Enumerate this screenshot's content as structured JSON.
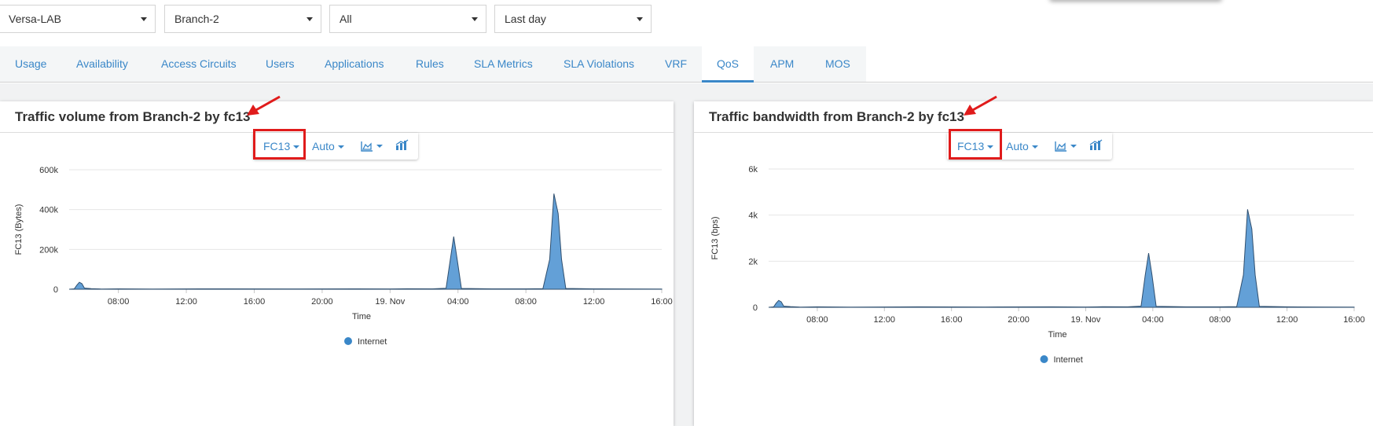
{
  "filters": [
    {
      "value": "Versa-LAB"
    },
    {
      "value": "Branch-2"
    },
    {
      "value": "All"
    },
    {
      "value": "Last day"
    }
  ],
  "tabs": [
    {
      "label": "Usage"
    },
    {
      "label": "Availability"
    },
    {
      "label": "Access Circuits"
    },
    {
      "label": "Users"
    },
    {
      "label": "Applications"
    },
    {
      "label": "Rules"
    },
    {
      "label": "SLA Metrics"
    },
    {
      "label": "SLA Violations"
    },
    {
      "label": "VRF"
    },
    {
      "label": "QoS",
      "active": true
    },
    {
      "label": "APM"
    },
    {
      "label": "MOS"
    }
  ],
  "panels": [
    {
      "title": "Traffic volume from Branch-2 by fc13",
      "toolbar": {
        "class_label": "FC13",
        "interval_label": "Auto",
        "chart_icon": "area-chart-icon",
        "stats_icon": "bar-stats-icon"
      }
    },
    {
      "title": "Traffic bandwidth from Branch-2 by fc13",
      "toolbar": {
        "class_label": "FC13",
        "interval_label": "Auto",
        "chart_icon": "area-chart-icon",
        "stats_icon": "bar-stats-icon"
      }
    }
  ],
  "colors": {
    "accent": "#3a87c8",
    "series": "#5b9bd5",
    "annotation": "#e01b1b"
  },
  "chart_data": [
    {
      "type": "area",
      "xlabel": "Time",
      "ylabel": "FC13 (Bytes)",
      "yticks": [
        "0",
        "200k",
        "400k",
        "600k"
      ],
      "ylim": [
        0,
        600000
      ],
      "xticks": [
        "08:00",
        "12:00",
        "16:00",
        "20:00",
        "19. Nov",
        "04:00",
        "08:00",
        "12:00",
        "16:00"
      ],
      "xlim_hours": [
        5.1,
        40.0
      ],
      "series": [
        {
          "name": "Internet",
          "points": [
            [
              5.1,
              0
            ],
            [
              5.4,
              2000
            ],
            [
              5.55,
              20000
            ],
            [
              5.7,
              35000
            ],
            [
              5.85,
              28000
            ],
            [
              6.0,
              6000
            ],
            [
              6.4,
              3000
            ],
            [
              7.0,
              1000
            ],
            [
              8.0,
              2000
            ],
            [
              10.0,
              1000
            ],
            [
              14.0,
              2000
            ],
            [
              18.0,
              1500
            ],
            [
              22.0,
              2000
            ],
            [
              24.0,
              1500
            ],
            [
              25.0,
              2500
            ],
            [
              26.5,
              2000
            ],
            [
              27.3,
              5000
            ],
            [
              27.55,
              150000
            ],
            [
              27.75,
              265000
            ],
            [
              27.95,
              150000
            ],
            [
              28.2,
              4000
            ],
            [
              30.0,
              2000
            ],
            [
              32.0,
              2000
            ],
            [
              33.0,
              3000
            ],
            [
              33.4,
              150000
            ],
            [
              33.65,
              480000
            ],
            [
              33.9,
              380000
            ],
            [
              34.1,
              150000
            ],
            [
              34.35,
              4000
            ],
            [
              36.0,
              2000
            ],
            [
              38.0,
              1500
            ],
            [
              40.0,
              1000
            ]
          ]
        }
      ],
      "legend": "bottom-center"
    },
    {
      "type": "area",
      "xlabel": "Time",
      "ylabel": "FC13 (bps)",
      "yticks": [
        "0",
        "2k",
        "4k",
        "6k"
      ],
      "ylim": [
        0,
        6000
      ],
      "xticks": [
        "08:00",
        "12:00",
        "16:00",
        "20:00",
        "19. Nov",
        "04:00",
        "08:00",
        "12:00",
        "16:00"
      ],
      "xlim_hours": [
        5.1,
        40.0
      ],
      "series": [
        {
          "name": "Internet",
          "points": [
            [
              5.1,
              0
            ],
            [
              5.4,
              20
            ],
            [
              5.55,
              180
            ],
            [
              5.7,
              300
            ],
            [
              5.85,
              240
            ],
            [
              6.0,
              50
            ],
            [
              6.4,
              30
            ],
            [
              7.0,
              10
            ],
            [
              8.0,
              20
            ],
            [
              10.0,
              10
            ],
            [
              14.0,
              20
            ],
            [
              18.0,
              15
            ],
            [
              22.0,
              20
            ],
            [
              24.0,
              15
            ],
            [
              25.0,
              25
            ],
            [
              26.5,
              20
            ],
            [
              27.3,
              50
            ],
            [
              27.55,
              1400
            ],
            [
              27.75,
              2350
            ],
            [
              27.95,
              1400
            ],
            [
              28.2,
              40
            ],
            [
              30.0,
              20
            ],
            [
              32.0,
              20
            ],
            [
              33.0,
              30
            ],
            [
              33.4,
              1400
            ],
            [
              33.65,
              4250
            ],
            [
              33.9,
              3400
            ],
            [
              34.1,
              1400
            ],
            [
              34.35,
              40
            ],
            [
              36.0,
              20
            ],
            [
              38.0,
              15
            ],
            [
              40.0,
              10
            ]
          ]
        }
      ],
      "legend": "bottom-center"
    }
  ]
}
